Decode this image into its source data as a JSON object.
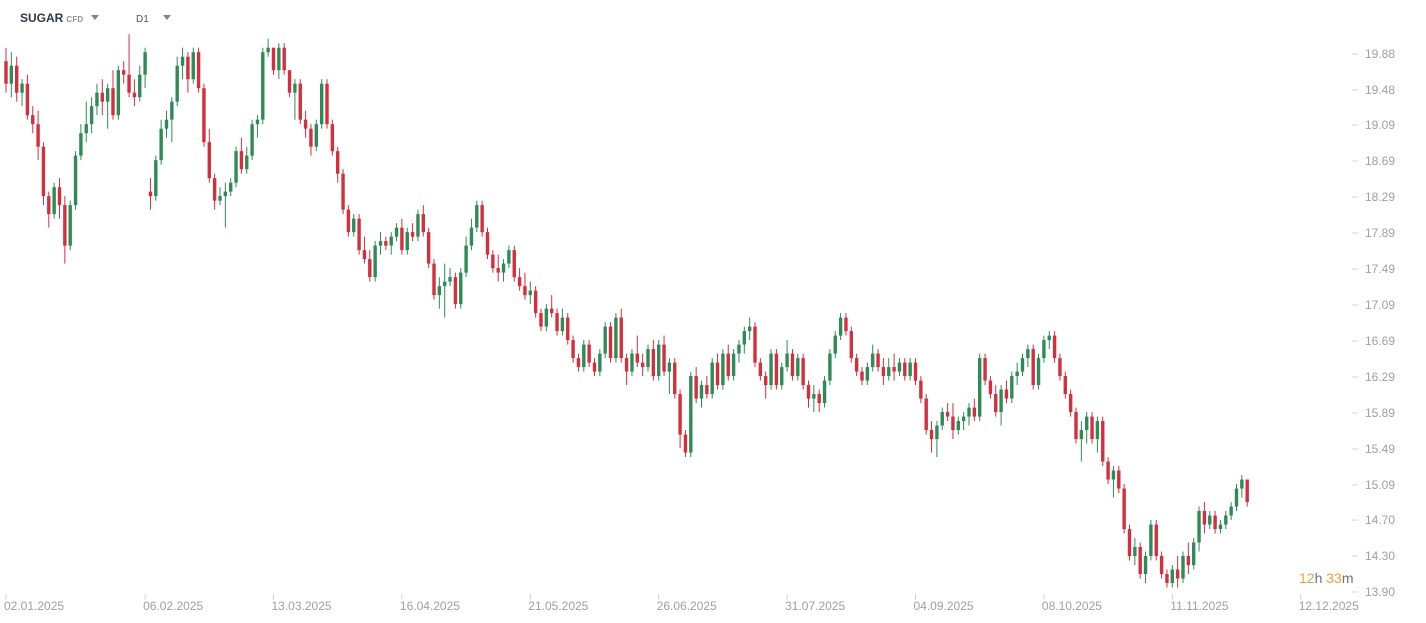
{
  "toolbar": {
    "symbol": "SUGAR",
    "symbol_type": "CFD",
    "timeframe": "D1"
  },
  "countdown": {
    "hours": "12",
    "h_label": "h",
    "minutes": "33",
    "m_label": "m"
  },
  "colors": {
    "up": "#2e8b57",
    "down": "#d32f3f",
    "axis_text": "#9aa1a9",
    "tick_line": "#d0d4d9",
    "countdown_num": "#f0a030"
  },
  "chart_data": {
    "type": "candlestick",
    "y_ticks": [
      "19.88",
      "19.48",
      "19.09",
      "18.69",
      "18.29",
      "17.89",
      "17.49",
      "17.09",
      "16.69",
      "16.29",
      "15.89",
      "15.49",
      "15.09",
      "14.70",
      "14.30",
      "13.90"
    ],
    "ylim": [
      13.9,
      20.08
    ],
    "x_ticks": [
      "02.01.2025",
      "06.02.2025",
      "13.03.2025",
      "16.04.2025",
      "21.05.2025",
      "26.06.2025",
      "31.07.2025",
      "04.09.2025",
      "08.10.2025",
      "11.11.2025",
      "12.12.2025"
    ],
    "x_tick_index": [
      0,
      26,
      50,
      74,
      98,
      122,
      146,
      170,
      194,
      218,
      242
    ],
    "candles": [
      [
        19.8,
        19.95,
        19.45,
        19.55
      ],
      [
        19.55,
        19.9,
        19.4,
        19.75
      ],
      [
        19.75,
        19.85,
        19.35,
        19.45
      ],
      [
        19.45,
        19.6,
        19.3,
        19.55
      ],
      [
        19.55,
        19.65,
        19.15,
        19.2
      ],
      [
        19.2,
        19.3,
        19.0,
        19.1
      ],
      [
        19.1,
        19.25,
        18.7,
        18.85
      ],
      [
        18.85,
        18.9,
        18.2,
        18.3
      ],
      [
        18.3,
        18.35,
        17.95,
        18.1
      ],
      [
        18.1,
        18.45,
        18.05,
        18.4
      ],
      [
        18.4,
        18.5,
        18.05,
        18.2
      ],
      [
        18.2,
        18.3,
        17.55,
        17.75
      ],
      [
        17.75,
        18.25,
        17.7,
        18.2
      ],
      [
        18.2,
        18.8,
        18.15,
        18.75
      ],
      [
        18.75,
        19.1,
        18.7,
        19.0
      ],
      [
        19.0,
        19.35,
        18.9,
        19.1
      ],
      [
        19.1,
        19.4,
        19.0,
        19.3
      ],
      [
        19.3,
        19.55,
        19.2,
        19.45
      ],
      [
        19.45,
        19.6,
        19.2,
        19.35
      ],
      [
        19.35,
        19.55,
        19.05,
        19.5
      ],
      [
        19.5,
        19.7,
        19.15,
        19.2
      ],
      [
        19.2,
        19.75,
        19.15,
        19.7
      ],
      [
        19.7,
        19.8,
        19.55,
        19.65
      ],
      [
        19.65,
        20.1,
        19.4,
        19.45
      ],
      [
        19.45,
        19.6,
        19.3,
        19.4
      ],
      [
        19.4,
        19.75,
        19.35,
        19.65
      ],
      [
        19.65,
        19.95,
        19.5,
        19.9
      ],
      [
        18.35,
        18.5,
        18.15,
        18.3
      ],
      [
        18.3,
        18.75,
        18.25,
        18.7
      ],
      [
        18.7,
        19.15,
        18.65,
        19.05
      ],
      [
        19.05,
        19.25,
        18.95,
        19.15
      ],
      [
        19.15,
        19.4,
        18.9,
        19.35
      ],
      [
        19.35,
        19.85,
        19.3,
        19.75
      ],
      [
        19.75,
        19.95,
        19.6,
        19.85
      ],
      [
        19.85,
        19.9,
        19.45,
        19.6
      ],
      [
        19.6,
        19.95,
        19.55,
        19.9
      ],
      [
        19.9,
        19.95,
        19.45,
        19.5
      ],
      [
        19.5,
        19.55,
        18.85,
        18.9
      ],
      [
        18.9,
        19.05,
        18.45,
        18.5
      ],
      [
        18.5,
        18.55,
        18.15,
        18.25
      ],
      [
        18.25,
        18.4,
        18.2,
        18.3
      ],
      [
        18.3,
        18.45,
        17.95,
        18.35
      ],
      [
        18.35,
        18.5,
        18.3,
        18.45
      ],
      [
        18.45,
        18.85,
        18.4,
        18.8
      ],
      [
        18.8,
        18.95,
        18.55,
        18.6
      ],
      [
        18.6,
        18.85,
        18.55,
        18.75
      ],
      [
        18.75,
        19.15,
        18.7,
        19.1
      ],
      [
        19.1,
        19.2,
        18.95,
        19.15
      ],
      [
        19.15,
        19.95,
        19.1,
        19.9
      ],
      [
        19.9,
        20.05,
        19.85,
        19.95
      ],
      [
        19.95,
        19.95,
        19.65,
        19.7
      ],
      [
        19.7,
        20.0,
        19.6,
        19.95
      ],
      [
        19.95,
        20.0,
        19.65,
        19.7
      ],
      [
        19.7,
        19.7,
        19.4,
        19.45
      ],
      [
        19.45,
        19.6,
        19.15,
        19.55
      ],
      [
        19.55,
        19.6,
        19.1,
        19.15
      ],
      [
        19.15,
        19.25,
        18.95,
        19.05
      ],
      [
        19.05,
        19.1,
        18.75,
        18.85
      ],
      [
        18.85,
        19.15,
        18.8,
        19.1
      ],
      [
        19.1,
        19.6,
        19.05,
        19.55
      ],
      [
        19.55,
        19.6,
        19.05,
        19.1
      ],
      [
        19.1,
        19.15,
        18.75,
        18.8
      ],
      [
        18.8,
        18.85,
        18.45,
        18.55
      ],
      [
        18.55,
        18.6,
        18.1,
        18.15
      ],
      [
        18.15,
        18.2,
        17.85,
        17.9
      ],
      [
        17.9,
        18.1,
        17.85,
        18.05
      ],
      [
        18.05,
        18.1,
        17.65,
        17.7
      ],
      [
        17.7,
        17.85,
        17.55,
        17.6
      ],
      [
        17.6,
        17.7,
        17.35,
        17.4
      ],
      [
        17.4,
        17.8,
        17.35,
        17.75
      ],
      [
        17.75,
        17.9,
        17.65,
        17.8
      ],
      [
        17.8,
        17.85,
        17.7,
        17.75
      ],
      [
        17.75,
        17.9,
        17.65,
        17.85
      ],
      [
        17.85,
        18.0,
        17.8,
        17.95
      ],
      [
        17.95,
        18.05,
        17.65,
        17.7
      ],
      [
        17.7,
        17.95,
        17.65,
        17.9
      ],
      [
        17.9,
        18.0,
        17.8,
        17.85
      ],
      [
        17.85,
        18.15,
        17.8,
        18.1
      ],
      [
        18.1,
        18.2,
        17.85,
        17.9
      ],
      [
        17.9,
        17.95,
        17.5,
        17.55
      ],
      [
        17.55,
        17.6,
        17.15,
        17.2
      ],
      [
        17.2,
        17.4,
        17.05,
        17.3
      ],
      [
        17.3,
        17.55,
        16.95,
        17.35
      ],
      [
        17.35,
        17.5,
        17.3,
        17.4
      ],
      [
        17.4,
        17.45,
        17.05,
        17.1
      ],
      [
        17.1,
        17.5,
        17.05,
        17.45
      ],
      [
        17.45,
        17.85,
        17.4,
        17.75
      ],
      [
        17.75,
        18.05,
        17.7,
        17.95
      ],
      [
        17.95,
        18.25,
        17.9,
        18.2
      ],
      [
        18.2,
        18.25,
        17.85,
        17.9
      ],
      [
        17.9,
        17.95,
        17.6,
        17.65
      ],
      [
        17.65,
        17.7,
        17.45,
        17.5
      ],
      [
        17.5,
        17.65,
        17.35,
        17.45
      ],
      [
        17.45,
        17.6,
        17.35,
        17.55
      ],
      [
        17.55,
        17.75,
        17.5,
        17.7
      ],
      [
        17.7,
        17.75,
        17.35,
        17.4
      ],
      [
        17.4,
        17.5,
        17.25,
        17.3
      ],
      [
        17.3,
        17.45,
        17.15,
        17.2
      ],
      [
        17.2,
        17.35,
        17.1,
        17.25
      ],
      [
        17.25,
        17.3,
        16.95,
        17.0
      ],
      [
        17.0,
        17.05,
        16.8,
        16.85
      ],
      [
        16.85,
        17.1,
        16.8,
        17.05
      ],
      [
        17.05,
        17.2,
        16.95,
        17.0
      ],
      [
        17.0,
        17.05,
        16.75,
        16.8
      ],
      [
        16.8,
        17.05,
        16.75,
        16.95
      ],
      [
        16.95,
        17.0,
        16.65,
        16.7
      ],
      [
        16.7,
        16.75,
        16.45,
        16.5
      ],
      [
        16.5,
        16.55,
        16.35,
        16.4
      ],
      [
        16.4,
        16.7,
        16.35,
        16.65
      ],
      [
        16.65,
        16.7,
        16.4,
        16.45
      ],
      [
        16.45,
        16.5,
        16.3,
        16.35
      ],
      [
        16.35,
        16.6,
        16.3,
        16.55
      ],
      [
        16.55,
        16.9,
        16.5,
        16.85
      ],
      [
        16.85,
        16.9,
        16.45,
        16.5
      ],
      [
        16.5,
        17.0,
        16.45,
        16.95
      ],
      [
        16.95,
        17.05,
        16.45,
        16.5
      ],
      [
        16.5,
        16.55,
        16.2,
        16.35
      ],
      [
        16.35,
        16.6,
        16.3,
        16.55
      ],
      [
        16.55,
        16.75,
        16.4,
        16.45
      ],
      [
        16.45,
        16.55,
        16.3,
        16.4
      ],
      [
        16.4,
        16.65,
        16.35,
        16.6
      ],
      [
        16.6,
        16.7,
        16.25,
        16.3
      ],
      [
        16.3,
        16.7,
        16.25,
        16.65
      ],
      [
        16.65,
        16.75,
        16.3,
        16.35
      ],
      [
        16.35,
        16.5,
        16.1,
        16.45
      ],
      [
        16.45,
        16.5,
        16.05,
        16.1
      ],
      [
        16.1,
        16.15,
        15.5,
        15.65
      ],
      [
        15.65,
        15.7,
        15.4,
        15.45
      ],
      [
        15.45,
        16.35,
        15.4,
        16.3
      ],
      [
        16.3,
        16.4,
        16.0,
        16.05
      ],
      [
        16.05,
        16.25,
        15.95,
        16.2
      ],
      [
        16.2,
        16.3,
        16.05,
        16.1
      ],
      [
        16.1,
        16.5,
        16.05,
        16.45
      ],
      [
        16.45,
        16.55,
        16.15,
        16.2
      ],
      [
        16.2,
        16.6,
        16.15,
        16.55
      ],
      [
        16.55,
        16.65,
        16.25,
        16.3
      ],
      [
        16.3,
        16.6,
        16.25,
        16.55
      ],
      [
        16.55,
        16.7,
        16.45,
        16.65
      ],
      [
        16.65,
        16.85,
        16.55,
        16.8
      ],
      [
        16.8,
        16.95,
        16.7,
        16.85
      ],
      [
        16.85,
        16.9,
        16.4,
        16.45
      ],
      [
        16.45,
        16.5,
        16.25,
        16.3
      ],
      [
        16.3,
        16.35,
        16.05,
        16.2
      ],
      [
        16.2,
        16.6,
        16.15,
        16.55
      ],
      [
        16.55,
        16.6,
        16.15,
        16.2
      ],
      [
        16.2,
        16.45,
        16.15,
        16.4
      ],
      [
        16.4,
        16.7,
        16.35,
        16.55
      ],
      [
        16.55,
        16.6,
        16.25,
        16.3
      ],
      [
        16.3,
        16.55,
        16.25,
        16.5
      ],
      [
        16.5,
        16.55,
        16.15,
        16.2
      ],
      [
        16.2,
        16.25,
        15.95,
        16.05
      ],
      [
        16.05,
        16.2,
        15.9,
        16.1
      ],
      [
        16.1,
        16.15,
        15.9,
        16.0
      ],
      [
        16.0,
        16.3,
        15.95,
        16.25
      ],
      [
        16.25,
        16.6,
        16.2,
        16.55
      ],
      [
        16.55,
        16.8,
        16.5,
        16.75
      ],
      [
        16.75,
        17.0,
        16.7,
        16.95
      ],
      [
        16.95,
        17.0,
        16.75,
        16.8
      ],
      [
        16.8,
        16.85,
        16.45,
        16.5
      ],
      [
        16.5,
        16.55,
        16.3,
        16.35
      ],
      [
        16.35,
        16.4,
        16.2,
        16.25
      ],
      [
        16.25,
        16.45,
        16.2,
        16.4
      ],
      [
        16.4,
        16.65,
        16.35,
        16.55
      ],
      [
        16.55,
        16.6,
        16.35,
        16.4
      ],
      [
        16.4,
        16.5,
        16.2,
        16.3
      ],
      [
        16.3,
        16.5,
        16.25,
        16.4
      ],
      [
        16.4,
        16.55,
        16.25,
        16.35
      ],
      [
        16.35,
        16.5,
        16.3,
        16.45
      ],
      [
        16.45,
        16.5,
        16.25,
        16.3
      ],
      [
        16.3,
        16.5,
        16.25,
        16.45
      ],
      [
        16.45,
        16.5,
        16.2,
        16.25
      ],
      [
        16.25,
        16.3,
        16.0,
        16.05
      ],
      [
        16.05,
        16.1,
        15.65,
        15.7
      ],
      [
        15.7,
        15.8,
        15.45,
        15.6
      ],
      [
        15.6,
        15.8,
        15.4,
        15.75
      ],
      [
        15.75,
        15.95,
        15.7,
        15.9
      ],
      [
        15.9,
        16.0,
        15.8,
        15.85
      ],
      [
        15.85,
        16.0,
        15.6,
        15.7
      ],
      [
        15.7,
        15.85,
        15.65,
        15.8
      ],
      [
        15.8,
        15.9,
        15.7,
        15.85
      ],
      [
        15.85,
        16.0,
        15.75,
        15.95
      ],
      [
        15.95,
        16.05,
        15.8,
        15.85
      ],
      [
        15.85,
        16.55,
        15.8,
        16.5
      ],
      [
        16.5,
        16.55,
        16.2,
        16.25
      ],
      [
        16.25,
        16.3,
        16.05,
        16.1
      ],
      [
        16.1,
        16.2,
        15.85,
        15.9
      ],
      [
        15.9,
        16.2,
        15.75,
        16.15
      ],
      [
        16.15,
        16.25,
        16.0,
        16.05
      ],
      [
        16.05,
        16.35,
        16.0,
        16.3
      ],
      [
        16.3,
        16.45,
        16.2,
        16.35
      ],
      [
        16.35,
        16.55,
        16.3,
        16.5
      ],
      [
        16.5,
        16.65,
        16.4,
        16.6
      ],
      [
        16.6,
        16.65,
        16.15,
        16.2
      ],
      [
        16.2,
        16.55,
        16.15,
        16.5
      ],
      [
        16.5,
        16.75,
        16.45,
        16.7
      ],
      [
        16.7,
        16.8,
        16.6,
        16.75
      ],
      [
        16.75,
        16.8,
        16.45,
        16.5
      ],
      [
        16.5,
        16.55,
        16.25,
        16.3
      ],
      [
        16.3,
        16.35,
        16.05,
        16.1
      ],
      [
        16.1,
        16.15,
        15.85,
        15.9
      ],
      [
        15.9,
        15.95,
        15.55,
        15.6
      ],
      [
        15.6,
        15.8,
        15.35,
        15.7
      ],
      [
        15.7,
        15.9,
        15.55,
        15.85
      ],
      [
        15.85,
        15.9,
        15.55,
        15.6
      ],
      [
        15.6,
        15.85,
        15.45,
        15.8
      ],
      [
        15.8,
        15.85,
        15.3,
        15.35
      ],
      [
        15.35,
        15.4,
        15.1,
        15.15
      ],
      [
        15.15,
        15.3,
        14.95,
        15.25
      ],
      [
        15.25,
        15.3,
        15.0,
        15.05
      ],
      [
        15.05,
        15.1,
        14.55,
        14.6
      ],
      [
        14.6,
        14.65,
        14.25,
        14.3
      ],
      [
        14.3,
        14.5,
        14.2,
        14.4
      ],
      [
        14.4,
        14.45,
        14.05,
        14.1
      ],
      [
        14.1,
        14.35,
        14.0,
        14.3
      ],
      [
        14.3,
        14.7,
        14.25,
        14.65
      ],
      [
        14.65,
        14.7,
        14.25,
        14.3
      ],
      [
        14.3,
        14.35,
        14.05,
        14.1
      ],
      [
        14.1,
        14.15,
        13.95,
        14.0
      ],
      [
        14.0,
        14.2,
        13.95,
        14.15
      ],
      [
        14.15,
        14.3,
        13.95,
        14.05
      ],
      [
        14.05,
        14.35,
        14.0,
        14.3
      ],
      [
        14.3,
        14.45,
        14.1,
        14.2
      ],
      [
        14.2,
        14.5,
        14.15,
        14.45
      ],
      [
        14.45,
        14.85,
        14.35,
        14.8
      ],
      [
        14.8,
        14.9,
        14.55,
        14.65
      ],
      [
        14.65,
        14.8,
        14.6,
        14.75
      ],
      [
        14.75,
        14.8,
        14.55,
        14.6
      ],
      [
        14.6,
        14.7,
        14.55,
        14.65
      ],
      [
        14.65,
        14.8,
        14.6,
        14.75
      ],
      [
        14.75,
        14.9,
        14.7,
        14.85
      ],
      [
        14.85,
        15.1,
        14.8,
        15.05
      ],
      [
        15.05,
        15.2,
        14.95,
        15.15
      ],
      [
        15.15,
        15.15,
        14.85,
        14.9
      ]
    ]
  }
}
